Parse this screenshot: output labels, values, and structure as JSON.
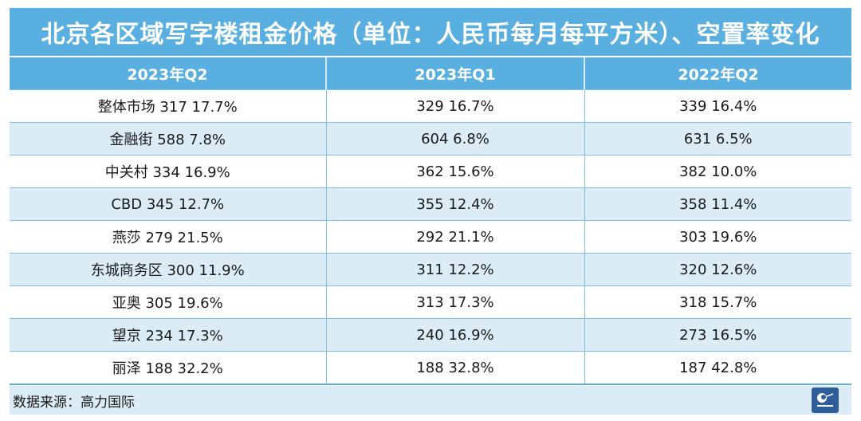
{
  "title": "北京各区域写字楼租金价格（单位：人民币每月每平方米）、空置率变化",
  "chart_data": {
    "type": "table",
    "columns": [
      "2023年Q2",
      "2023年Q1",
      "2022年Q2"
    ],
    "rows": [
      [
        "整体市场 317  17.7%",
        "329  16.7%",
        "339  16.4%"
      ],
      [
        "金融街 588  7.8%",
        "604  6.8%",
        "631  6.5%"
      ],
      [
        "中关村 334  16.9%",
        "362  15.6%",
        "382  10.0%"
      ],
      [
        "CBD  345  12.7%",
        "355  12.4%",
        "358  11.4%"
      ],
      [
        "燕莎  279  21.5%",
        "292  21.1%",
        "303  19.6%"
      ],
      [
        "东城商务区  300  11.9%",
        "311  12.2%",
        "320  12.6%"
      ],
      [
        "亚奥  305  19.6%",
        "313  17.3%",
        "318  15.7%"
      ],
      [
        "望京  234  17.3%",
        "240  16.9%",
        "273  16.5%"
      ],
      [
        "丽泽  188  32.2%",
        "188  32.8%",
        "187  42.8%"
      ]
    ]
  },
  "source": "数据来源：高力国际",
  "logo": {
    "icon": "publisher-logo-icon",
    "color": "#2f5d9a"
  }
}
